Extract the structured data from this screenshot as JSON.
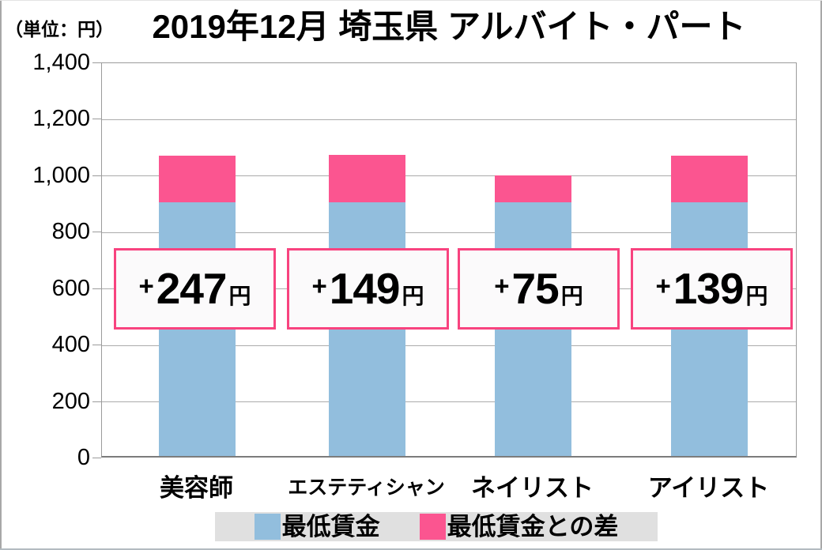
{
  "chart_data": {
    "type": "stacked-bar",
    "title": "2019年12月 埼玉県 アルバイト・パート",
    "unit_label": "（単位：円）",
    "categories": [
      "美容師",
      "エステティシャン",
      "ネイリスト",
      "アイリスト"
    ],
    "series": [
      {
        "name": "最低賃金",
        "color": "#92bedd",
        "values": [
          898,
          898,
          898,
          898
        ]
      },
      {
        "name": "最低賃金との差",
        "color": "#fb5590",
        "values": [
          247,
          149,
          75,
          139
        ],
        "labels": [
          "+247円",
          "+149円",
          "+75円",
          "+139円"
        ],
        "rendered_heights": [
          165,
          170,
          95,
          165
        ]
      }
    ],
    "annotations": [
      {
        "plus": "+",
        "value": "247",
        "unit": "円"
      },
      {
        "plus": "+",
        "value": "149",
        "unit": "円"
      },
      {
        "plus": "+",
        "value": "75",
        "unit": "円"
      },
      {
        "plus": "+",
        "value": "139",
        "unit": "円"
      }
    ],
    "ylim": [
      0,
      1400
    ],
    "yticks": [
      {
        "value": 1400,
        "label": "1,400"
      },
      {
        "value": 1200,
        "label": "1,200"
      },
      {
        "value": 1000,
        "label": "1,000"
      },
      {
        "value": 800,
        "label": "800"
      },
      {
        "value": 600,
        "label": "600"
      },
      {
        "value": 400,
        "label": "400"
      },
      {
        "value": 200,
        "label": "200"
      },
      {
        "value": 0,
        "label": "0"
      }
    ],
    "grid": true,
    "legend_position": "bottom",
    "colors": {
      "bar_blue": "#92bedd",
      "bar_pink": "#fb5590",
      "annotation_border": "#f8437f",
      "annotation_bg": "#fbfafb",
      "legend_bg": "#e0e0e0",
      "gridline": "#ababab",
      "text": "#000000"
    }
  }
}
